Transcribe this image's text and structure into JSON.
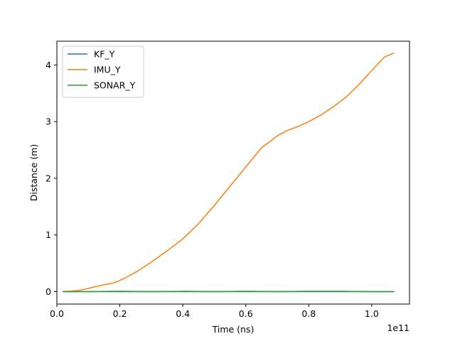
{
  "chart_data": {
    "type": "line",
    "title": "",
    "xlabel": "Time (ns)",
    "ylabel": "Distance (m)",
    "x_offset_label": "1e11",
    "xlim": [
      0.0,
      1.12
    ],
    "ylim": [
      -0.22,
      4.42
    ],
    "x_ticks": [
      0.0,
      0.2,
      0.4,
      0.6,
      0.8,
      1.0
    ],
    "x_tick_labels": [
      "0.0",
      "0.2",
      "0.4",
      "0.6",
      "0.8",
      "1.0"
    ],
    "y_ticks": [
      0,
      1,
      2,
      3,
      4
    ],
    "y_tick_labels": [
      "0",
      "1",
      "2",
      "3",
      "4"
    ],
    "grid": false,
    "legend_position": "upper-left",
    "series": [
      {
        "name": "KF_Y",
        "color": "#1f77b4",
        "x": [
          0.02,
          0.1,
          0.2,
          0.3,
          0.4,
          0.5,
          0.6,
          0.7,
          0.8,
          0.9,
          1.0,
          1.07
        ],
        "y": [
          0.0,
          0.0,
          0.0,
          0.0,
          0.0,
          0.0,
          0.0,
          0.0,
          0.0,
          0.0,
          0.0,
          0.0
        ]
      },
      {
        "name": "IMU_Y",
        "color": "#ff7f0e",
        "x": [
          0.02,
          0.05,
          0.08,
          0.11,
          0.14,
          0.17,
          0.19,
          0.22,
          0.25,
          0.3,
          0.35,
          0.4,
          0.45,
          0.5,
          0.55,
          0.6,
          0.65,
          0.67,
          0.7,
          0.73,
          0.76,
          0.8,
          0.84,
          0.88,
          0.92,
          0.96,
          1.0,
          1.04,
          1.07
        ],
        "y": [
          0.0,
          0.01,
          0.03,
          0.07,
          0.11,
          0.14,
          0.17,
          0.25,
          0.34,
          0.52,
          0.72,
          0.93,
          1.2,
          1.52,
          1.86,
          2.2,
          2.54,
          2.62,
          2.75,
          2.84,
          2.9,
          3.0,
          3.12,
          3.27,
          3.44,
          3.66,
          3.9,
          4.14,
          4.21
        ]
      },
      {
        "name": "SONAR_Y",
        "color": "#2ca02c",
        "x": [
          0.02,
          0.1,
          0.2,
          0.3,
          0.4,
          0.5,
          0.6,
          0.7,
          0.8,
          0.9,
          1.0,
          1.07
        ],
        "y": [
          0.0,
          0.0,
          0.005,
          0.0,
          0.005,
          0.0,
          0.005,
          0.0,
          0.005,
          0.005,
          0.0,
          0.0
        ]
      }
    ]
  }
}
